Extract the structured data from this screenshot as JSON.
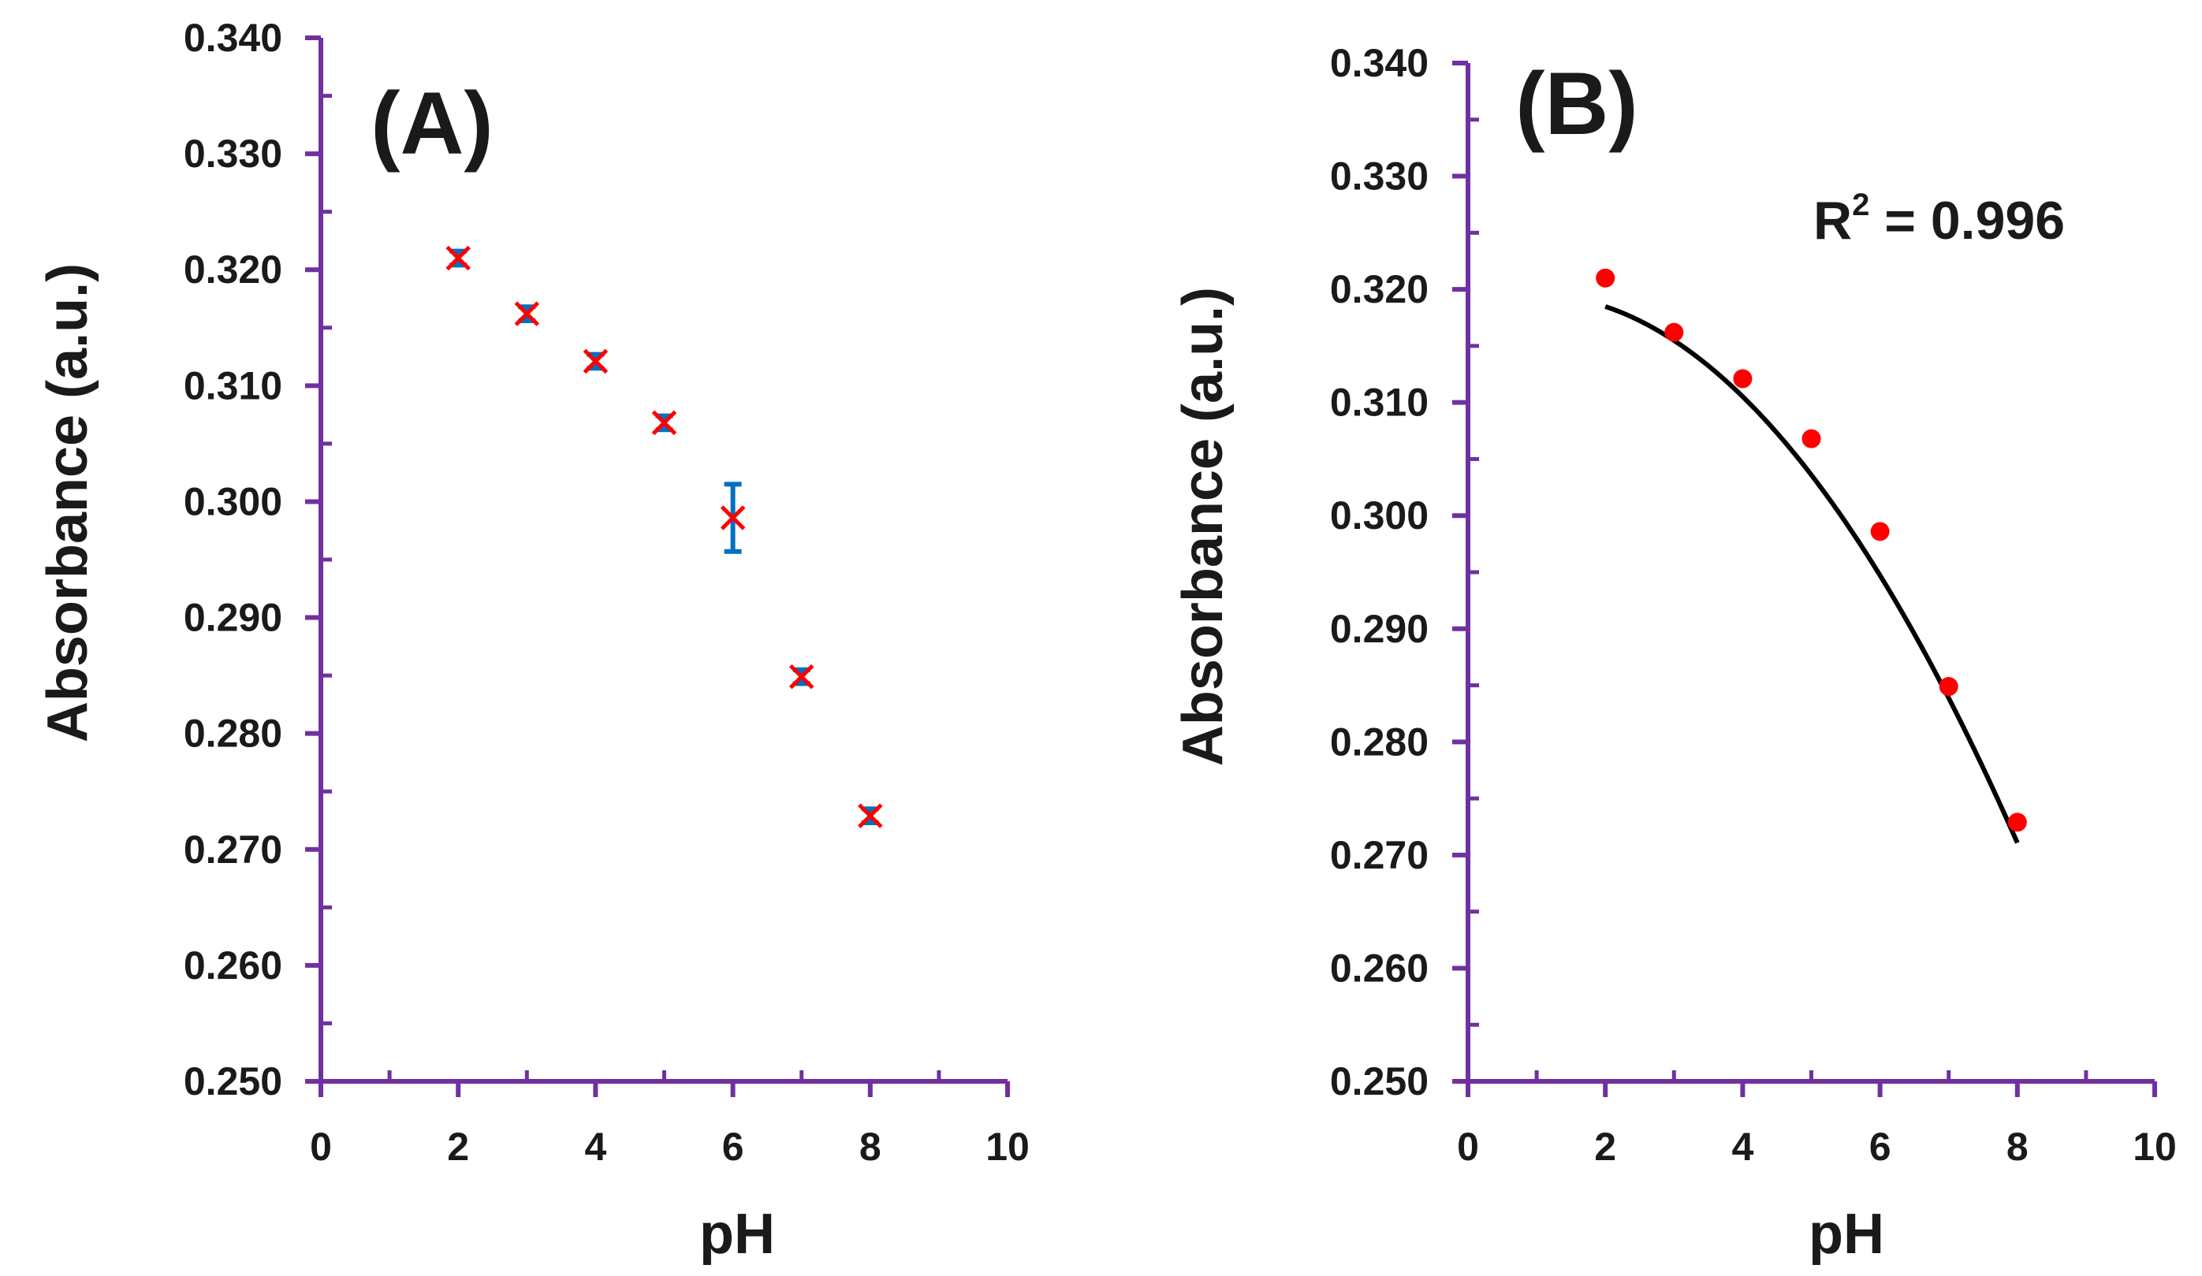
{
  "figure": {
    "panels": [
      "A",
      "B"
    ]
  },
  "chart_data": [
    {
      "type": "scatter",
      "panel_label": "(A)",
      "xlabel": "pH",
      "ylabel": "Absorbance (a.u.)",
      "xlim": [
        0,
        10
      ],
      "ylim": [
        0.25,
        0.34
      ],
      "x_ticks": [
        "0",
        "2",
        "4",
        "6",
        "8",
        "10"
      ],
      "y_ticks": [
        "0.250",
        "0.260",
        "0.270",
        "0.280",
        "0.290",
        "0.300",
        "0.310",
        "0.320",
        "0.330",
        "0.340"
      ],
      "grid": false,
      "axis_color": "#7030a0",
      "marker": "x",
      "marker_color": "#ff0000",
      "errorbar_color": "#0070c0",
      "series": [
        {
          "name": "Absorbance",
          "x": [
            2,
            3,
            4,
            5,
            6,
            7,
            8
          ],
          "y": [
            0.321,
            0.3162,
            0.3121,
            0.3068,
            0.2986,
            0.2849,
            0.2729
          ],
          "error": [
            0.0006,
            0.0006,
            0.0006,
            0.0006,
            0.0029,
            0.0006,
            0.0006
          ]
        }
      ]
    },
    {
      "type": "scatter",
      "panel_label": "(B)",
      "xlabel": "pH",
      "ylabel": "Absorbance (a.u.)",
      "xlim": [
        0,
        10
      ],
      "ylim": [
        0.25,
        0.34
      ],
      "x_ticks": [
        "0",
        "2",
        "4",
        "6",
        "8",
        "10"
      ],
      "y_ticks": [
        "0.250",
        "0.260",
        "0.270",
        "0.280",
        "0.290",
        "0.300",
        "0.310",
        "0.320",
        "0.330",
        "0.340"
      ],
      "grid": false,
      "axis_color": "#7030a0",
      "marker": "circle",
      "marker_color": "#ff0000",
      "fit_color": "#000000",
      "annotation": {
        "label": "R",
        "sup": "2",
        "value": " = 0.996"
      },
      "series": [
        {
          "name": "Absorbance",
          "x": [
            2,
            3,
            4,
            5,
            6,
            7,
            8
          ],
          "y": [
            0.321,
            0.3162,
            0.3121,
            0.3068,
            0.2986,
            0.2849,
            0.2729
          ]
        }
      ],
      "fit": {
        "type": "polynomial-2",
        "x_range": [
          2,
          8
        ],
        "coefficients": [
          0.3186,
          0.0019,
          -0.00098
        ]
      }
    }
  ]
}
